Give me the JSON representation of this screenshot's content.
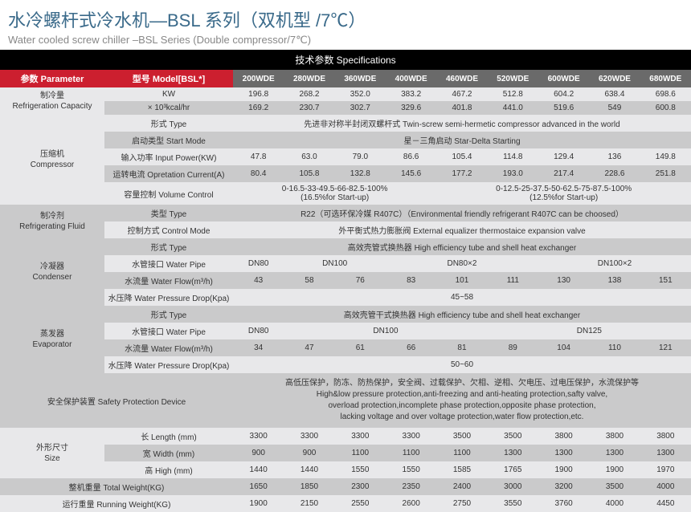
{
  "title_cn": "水冷螺杆式冷水机—BSL 系列（双机型 /7℃）",
  "title_en": "Water cooled screw chiller –BSL Series (Double compressor/7℃)",
  "spec_header": "技术参数 Specifications",
  "param_label": "参数 Parameter",
  "model_label": "型号 Model[BSL*]",
  "models": [
    "200WDE",
    "280WDE",
    "360WDE",
    "400WDE",
    "460WDE",
    "520WDE",
    "600WDE",
    "620WDE",
    "680WDE"
  ],
  "groups": {
    "refrig_cap": "制冷量\nRefrigeration Capacity",
    "compressor": "压缩机\nCompressor",
    "refrig_fluid": "制冷剂\nRefrigerating Fluid",
    "condenser": "冷凝器\nCondenser",
    "evaporator": "蒸发器\nEvaporator",
    "safety": "安全保护装置 Safety Protection Device",
    "size": "外形尺寸\nSize",
    "total_weight": "整机重量 Total Weight(KG)",
    "run_weight": "运行重量 Running Weight(KG)"
  },
  "labels": {
    "kw": "KW",
    "kcal": "× 10³kcal/hr",
    "type": "形式 Type",
    "start_mode": "启动类型 Start Mode",
    "input_power": "输入功率 Input Power(KW)",
    "op_current": "运转电流 Opretation Current(A)",
    "vol_control": "容量控制 Volume Control",
    "fluid_type": "类型 Type",
    "control_mode": "控制方式 Control Mode",
    "water_pipe": "水管接口 Water Pipe",
    "water_flow": "水流量 Water Flow(m³/h)",
    "pressure_drop": "水压降 Water Pressure Drop(Kpa)",
    "length": "长 Length (mm)",
    "width": "宽 Width (mm)",
    "height": "高 High (mm)"
  },
  "rows": {
    "kw": [
      "196.8",
      "268.2",
      "352.0",
      "383.2",
      "467.2",
      "512.8",
      "604.2",
      "638.4",
      "698.6"
    ],
    "kcal": [
      "169.2",
      "230.7",
      "302.7",
      "329.6",
      "401.8",
      "441.0",
      "519.6",
      "549",
      "600.8"
    ],
    "input_power": [
      "47.8",
      "63.0",
      "79.0",
      "86.6",
      "105.4",
      "114.8",
      "129.4",
      "136",
      "149.8"
    ],
    "op_current": [
      "80.4",
      "105.8",
      "132.8",
      "145.6",
      "177.2",
      "193.0",
      "217.4",
      "228.6",
      "251.8"
    ],
    "cond_flow": [
      "43",
      "58",
      "76",
      "83",
      "101",
      "111",
      "130",
      "138",
      "151"
    ],
    "evap_flow": [
      "34",
      "47",
      "61",
      "66",
      "81",
      "89",
      "104",
      "110",
      "121"
    ],
    "length": [
      "3300",
      "3300",
      "3300",
      "3300",
      "3500",
      "3500",
      "3800",
      "3800",
      "3800"
    ],
    "width": [
      "900",
      "900",
      "1100",
      "1100",
      "1100",
      "1300",
      "1300",
      "1300",
      "1300"
    ],
    "height": [
      "1440",
      "1440",
      "1550",
      "1550",
      "1585",
      "1765",
      "1900",
      "1900",
      "1970"
    ],
    "total_w": [
      "1650",
      "1850",
      "2300",
      "2350",
      "2400",
      "3000",
      "3200",
      "3500",
      "4000"
    ],
    "run_w": [
      "1900",
      "2150",
      "2550",
      "2600",
      "2750",
      "3550",
      "3760",
      "4000",
      "4450"
    ]
  },
  "spans": {
    "comp_type": "先进非对称半封闭双螺杆式 Twin-screw semi-hermetic compressor advanced in the world",
    "start_mode": "星－三角启动 Star-Delta Starting",
    "vol_ctrl_a": "0-16.5-33-49.5-66-82.5-100%\n(16.5%for Start-up)",
    "vol_ctrl_b": "0-12.5-25-37.5-50-62.5-75-87.5-100%\n(12.5%for Start-up)",
    "fluid_type": "R22（可选环保冷媒 R407C）（Environmental friendly refrigerant R407C can be choosed）",
    "control_mode": "外平衡式热力膨胀阀 External equalizer thermostaice expansion valve",
    "cond_type": "高效壳管式换热器 High efficiency tube and shell heat exchanger",
    "evap_type": "高效壳管干式换热器 High efficiency tube and shell heat exchanger",
    "cond_drop": "45~58",
    "evap_drop": "50~60",
    "safety": "高低压保护，防冻、防热保护，安全阀、过载保护、欠相、逆相、欠电压、过电压保护，水流保护等\nHigh&low pressure protection,anti-freezing and anti-heating protection,safty valve,\noverload protection,incomplete phase protection,opposite phase protection,\nlacking voltage and over voltage protection,water flow protection,etc."
  },
  "pipe": {
    "dn80": "DN80",
    "dn100": "DN100",
    "dn80x2": "DN80×2",
    "dn100x2": "DN100×2",
    "dn125": "DN125"
  }
}
